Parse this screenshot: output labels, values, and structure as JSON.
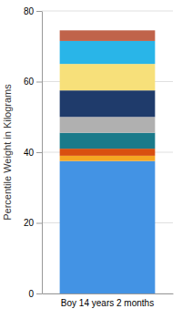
{
  "chart_data": {
    "type": "bar",
    "stacked": true,
    "categories": [
      "Boy 14 years 2 months"
    ],
    "series": [
      {
        "color": "#4393E4",
        "values": [
          37.5
        ]
      },
      {
        "color": "#F5A623",
        "values": [
          1.5
        ]
      },
      {
        "color": "#D94F10",
        "values": [
          2.0
        ]
      },
      {
        "color": "#1A7A8A",
        "values": [
          4.5
        ]
      },
      {
        "color": "#B0B0B0",
        "values": [
          4.5
        ]
      },
      {
        "color": "#1F3B6B",
        "values": [
          7.5
        ]
      },
      {
        "color": "#F7E07A",
        "values": [
          7.5
        ]
      },
      {
        "color": "#29B5E8",
        "values": [
          6.5
        ]
      },
      {
        "color": "#C0634A",
        "values": [
          3.0
        ]
      }
    ],
    "ylabel": "Percentile Weight in Kilograms",
    "ylim": [
      0,
      80
    ],
    "yticks": [
      0,
      20,
      40,
      60,
      80
    ],
    "grid": true
  }
}
